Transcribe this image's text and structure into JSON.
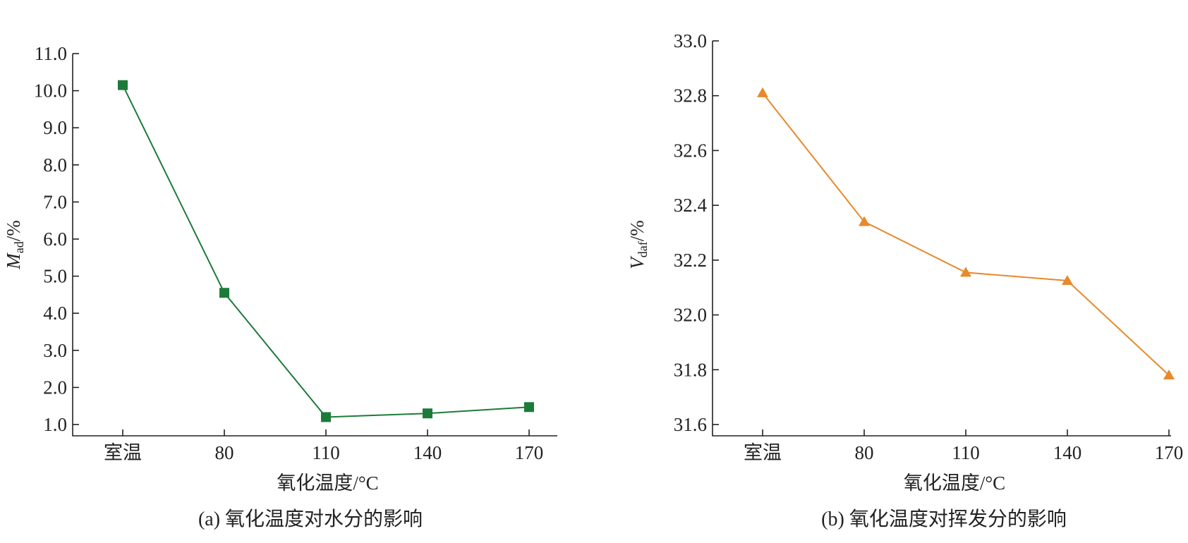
{
  "chart_data": [
    {
      "type": "line",
      "caption": "(a) 氧化温度对水分的影响",
      "xlabel": "氧化温度/°C",
      "ylabel_main": "M",
      "ylabel_sub": "ad",
      "ylabel_unit": "/%",
      "categories": [
        "室温",
        "80",
        "110",
        "140",
        "170"
      ],
      "series": [
        {
          "values": [
            10.15,
            4.55,
            1.2,
            1.3,
            1.47
          ],
          "color": "#1d7b3a",
          "marker": "square"
        }
      ],
      "ylim": [
        0.2,
        11.0
      ],
      "yticks": [
        1.0,
        2.0,
        3.0,
        4.0,
        5.0,
        6.0,
        7.0,
        8.0,
        9.0,
        10.0,
        11.0
      ],
      "ytick_labels": [
        "1.0",
        "2.0",
        "3.0",
        "4.0",
        "5.0",
        "6.0",
        "7.0",
        "8.0",
        "9.0",
        "10.0",
        "11.0"
      ],
      "grid": false
    },
    {
      "type": "line",
      "caption": "(b) 氧化温度对挥发分的影响",
      "xlabel": "氧化温度/°C",
      "ylabel_main": "V",
      "ylabel_sub": "daf",
      "ylabel_unit": "/%",
      "categories": [
        "室温",
        "80",
        "110",
        "140",
        "170"
      ],
      "series": [
        {
          "values": [
            32.81,
            32.34,
            32.155,
            32.125,
            31.78
          ],
          "color": "#e8892b",
          "marker": "triangle"
        }
      ],
      "ylim": [
        31.55,
        33.0
      ],
      "yticks": [
        31.6,
        31.8,
        32.0,
        32.2,
        32.4,
        32.6,
        32.8,
        33.0
      ],
      "ytick_labels": [
        "31.6",
        "31.8",
        "32.0",
        "32.2",
        "32.4",
        "32.6",
        "32.8",
        "33.0"
      ],
      "grid": false
    }
  ]
}
